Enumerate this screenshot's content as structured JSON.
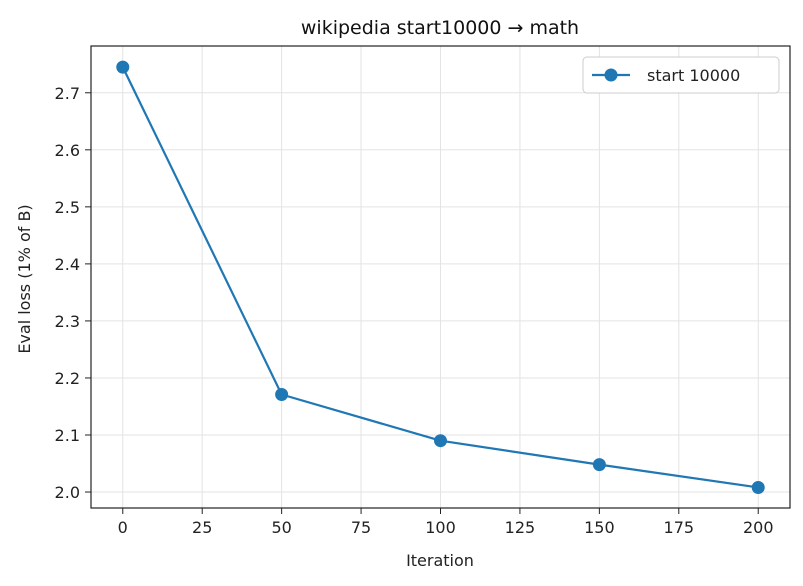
{
  "chart_data": {
    "type": "line",
    "title": "wikipedia start10000 → math",
    "xlabel": "Iteration",
    "ylabel": "Eval loss (1% of B)",
    "x": [
      0,
      50,
      100,
      150,
      200
    ],
    "series": [
      {
        "name": "start 10000",
        "values": [
          2.745,
          2.171,
          2.09,
          2.048,
          2.008
        ],
        "color": "#1f77b4"
      }
    ],
    "xlim": [
      -10,
      210
    ],
    "ylim": [
      1.972,
      2.782
    ],
    "xticks": [
      0,
      25,
      50,
      75,
      100,
      125,
      150,
      175,
      200
    ],
    "xtick_labels": [
      "0",
      "25",
      "50",
      "75",
      "100",
      "125",
      "150",
      "175",
      "200"
    ],
    "yticks": [
      2.0,
      2.1,
      2.2,
      2.3,
      2.4,
      2.5,
      2.6,
      2.7
    ],
    "ytick_labels": [
      "2.0",
      "2.1",
      "2.2",
      "2.3",
      "2.4",
      "2.5",
      "2.6",
      "2.7"
    ],
    "grid": true,
    "legend_position": "top-right"
  }
}
